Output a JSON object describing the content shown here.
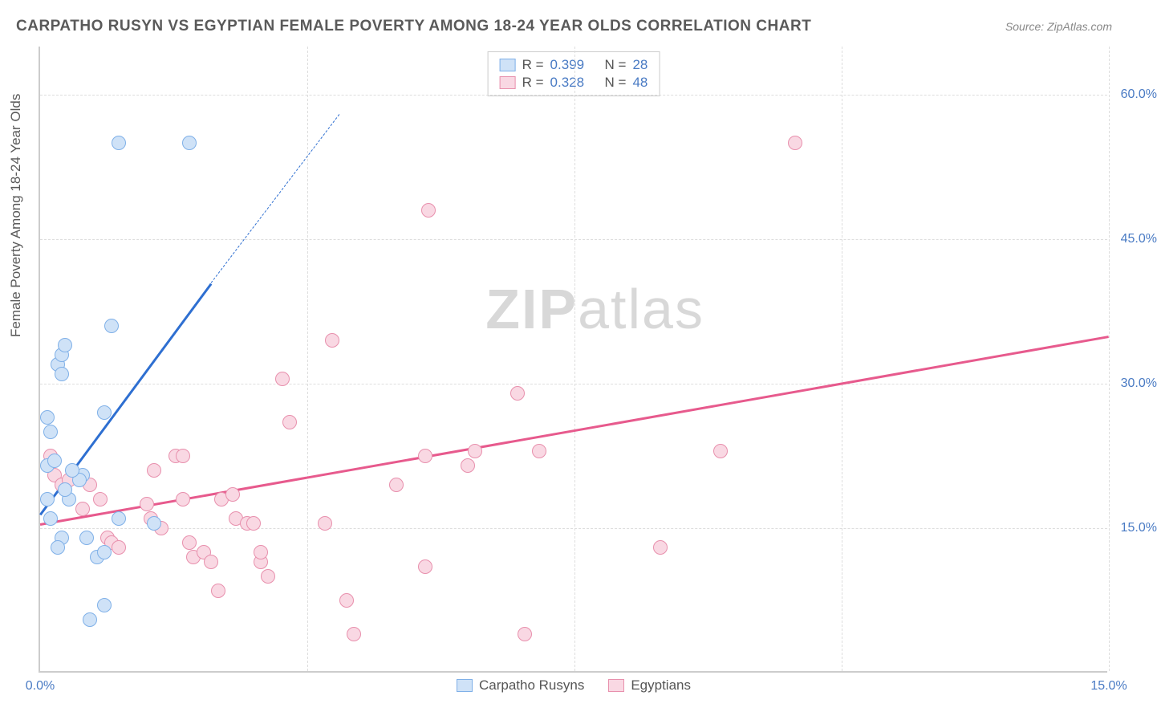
{
  "header": {
    "title": "CARPATHO RUSYN VS EGYPTIAN FEMALE POVERTY AMONG 18-24 YEAR OLDS CORRELATION CHART",
    "source_label": "Source: ZipAtlas.com"
  },
  "watermark": {
    "part1": "ZIP",
    "part2": "atlas"
  },
  "chart": {
    "type": "scatter",
    "ylabel": "Female Poverty Among 18-24 Year Olds",
    "xlim": [
      0,
      15
    ],
    "ylim": [
      0,
      65
    ],
    "y_gridlines": [
      15,
      30,
      45,
      60
    ],
    "y_tick_labels": [
      "15.0%",
      "30.0%",
      "45.0%",
      "60.0%"
    ],
    "x_gridlines": [
      3.75,
      7.5,
      11.25,
      15
    ],
    "x_tick_labels": [
      "0.0%",
      "15.0%"
    ],
    "x_tick_positions": [
      0,
      15
    ],
    "background_color": "#ffffff",
    "grid_color": "#dddddd",
    "axis_color": "#cccccc",
    "tick_color": "#4a7bc4"
  },
  "series": {
    "carpatho": {
      "label": "Carpatho Rusyns",
      "fill": "#cfe2f7",
      "stroke": "#7fb0e8",
      "trend_color": "#2e6fd1",
      "r": 0.399,
      "n": 28,
      "trend": {
        "x1": 0.0,
        "y1": 16.5,
        "x2": 2.4,
        "y2": 40.5,
        "dashed_to_x": 4.2,
        "dashed_to_y": 58
      },
      "points": [
        [
          0.1,
          26.5
        ],
        [
          0.15,
          25
        ],
        [
          0.1,
          21.5
        ],
        [
          0.2,
          22
        ],
        [
          0.25,
          32
        ],
        [
          0.3,
          33
        ],
        [
          0.3,
          31
        ],
        [
          0.35,
          34
        ],
        [
          0.1,
          18
        ],
        [
          0.15,
          16
        ],
        [
          0.3,
          14
        ],
        [
          0.25,
          13
        ],
        [
          0.6,
          20.5
        ],
        [
          0.55,
          20
        ],
        [
          0.4,
          18
        ],
        [
          0.9,
          27
        ],
        [
          1.0,
          36
        ],
        [
          1.1,
          16
        ],
        [
          1.6,
          15.5
        ],
        [
          0.65,
          14
        ],
        [
          0.8,
          12
        ],
        [
          0.9,
          12.5
        ],
        [
          0.9,
          7
        ],
        [
          0.7,
          5.5
        ],
        [
          1.1,
          55
        ],
        [
          2.1,
          55
        ],
        [
          0.45,
          21
        ],
        [
          0.35,
          19
        ]
      ]
    },
    "egyptian": {
      "label": "Egyptians",
      "fill": "#f9d8e3",
      "stroke": "#e890ad",
      "trend_color": "#e75a8d",
      "r": 0.328,
      "n": 48,
      "trend": {
        "x1": 0.0,
        "y1": 15.5,
        "x2": 15.0,
        "y2": 35
      },
      "points": [
        [
          0.15,
          22.5
        ],
        [
          0.2,
          20.5
        ],
        [
          0.3,
          19.5
        ],
        [
          0.4,
          20
        ],
        [
          0.6,
          17
        ],
        [
          0.7,
          19.5
        ],
        [
          0.85,
          18
        ],
        [
          0.95,
          14
        ],
        [
          1.0,
          13.5
        ],
        [
          1.1,
          13
        ],
        [
          1.5,
          17.5
        ],
        [
          1.55,
          16
        ],
        [
          1.6,
          21
        ],
        [
          1.7,
          15
        ],
        [
          1.9,
          22.5
        ],
        [
          2.0,
          18
        ],
        [
          2.0,
          22.5
        ],
        [
          2.1,
          13.5
        ],
        [
          2.15,
          12
        ],
        [
          2.3,
          12.5
        ],
        [
          2.4,
          11.5
        ],
        [
          2.5,
          8.5
        ],
        [
          2.55,
          18
        ],
        [
          2.7,
          18.5
        ],
        [
          2.75,
          16
        ],
        [
          2.9,
          15.5
        ],
        [
          3.0,
          15.5
        ],
        [
          3.1,
          11.5
        ],
        [
          3.1,
          12.5
        ],
        [
          3.2,
          10
        ],
        [
          3.5,
          26
        ],
        [
          3.4,
          30.5
        ],
        [
          4.0,
          15.5
        ],
        [
          4.1,
          34.5
        ],
        [
          4.3,
          7.5
        ],
        [
          4.4,
          4
        ],
        [
          5.0,
          19.5
        ],
        [
          5.4,
          22.5
        ],
        [
          5.4,
          11
        ],
        [
          5.45,
          48
        ],
        [
          6.0,
          21.5
        ],
        [
          6.1,
          23
        ],
        [
          6.7,
          29
        ],
        [
          6.8,
          4
        ],
        [
          7.0,
          23
        ],
        [
          8.7,
          13
        ],
        [
          9.55,
          23
        ],
        [
          10.6,
          55
        ]
      ]
    }
  },
  "legend_top": {
    "rows": [
      {
        "swatch_fill": "#cfe2f7",
        "swatch_stroke": "#7fb0e8",
        "r_label": "R =",
        "r_val": "0.399",
        "n_label": "N =",
        "n_val": "28"
      },
      {
        "swatch_fill": "#f9d8e3",
        "swatch_stroke": "#e890ad",
        "r_label": "R =",
        "r_val": "0.328",
        "n_label": "N =",
        "n_val": "48"
      }
    ]
  },
  "legend_bottom": {
    "items": [
      {
        "swatch_fill": "#cfe2f7",
        "swatch_stroke": "#7fb0e8",
        "label": "Carpatho Rusyns"
      },
      {
        "swatch_fill": "#f9d8e3",
        "swatch_stroke": "#e890ad",
        "label": "Egyptians"
      }
    ]
  }
}
